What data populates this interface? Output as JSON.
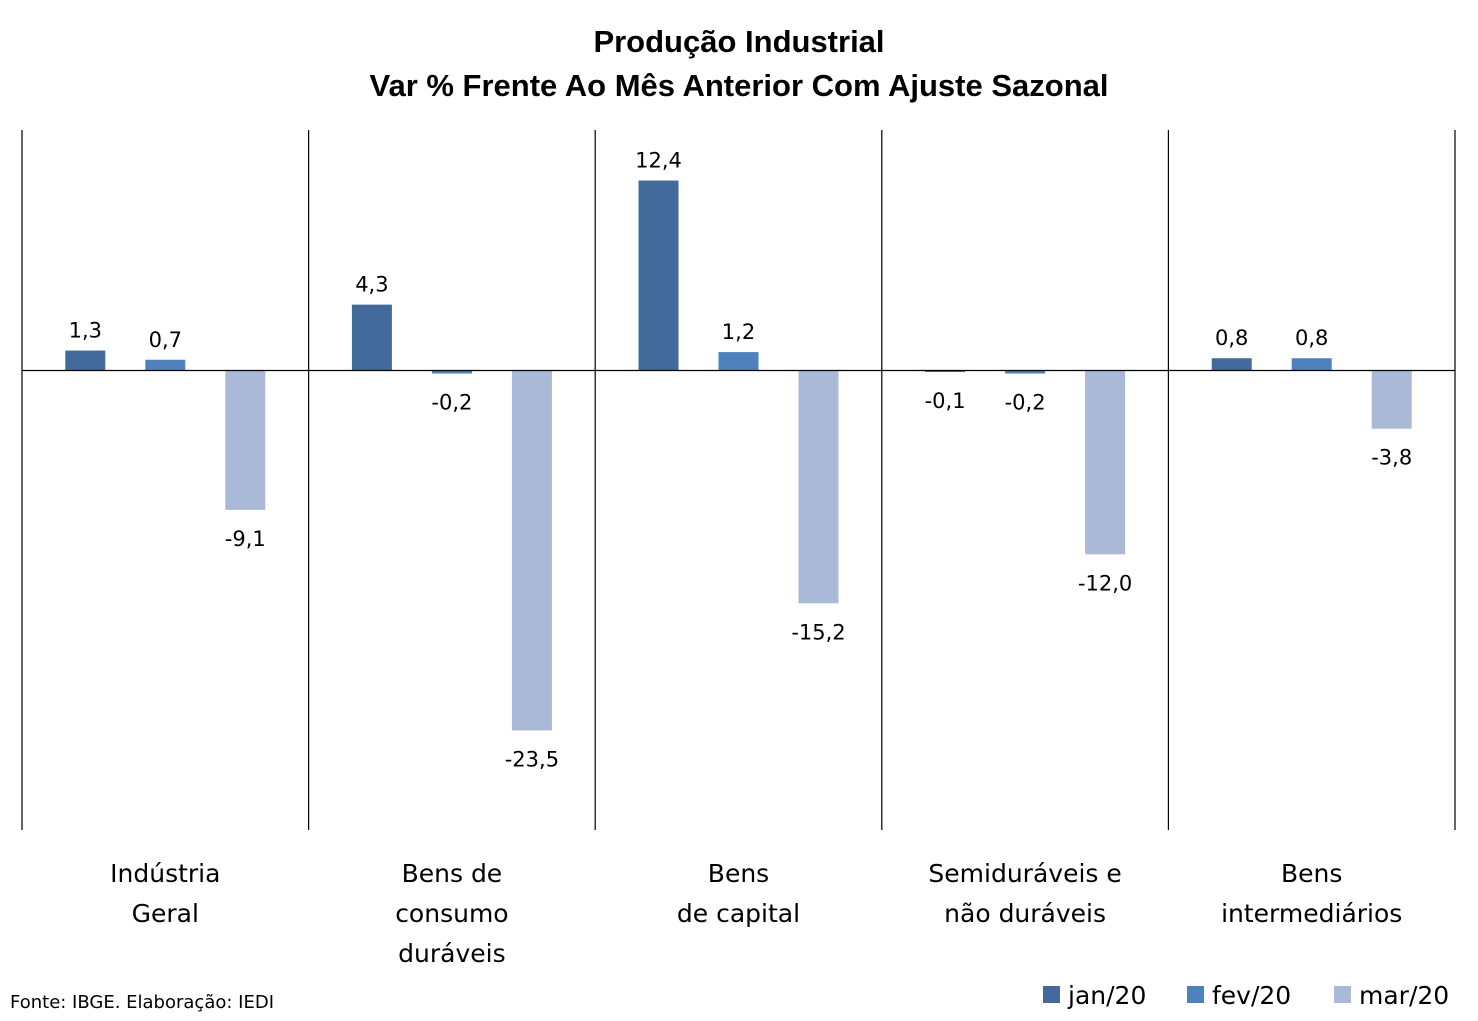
{
  "chart_data": {
    "type": "bar",
    "title": "Produção Industrial",
    "subtitle": "Var % Frente Ao Mês Anterior Com Ajuste Sazonal",
    "categories": [
      [
        "Indústria",
        "Geral"
      ],
      [
        "Bens de",
        "consumo",
        "duráveis"
      ],
      [
        "Bens",
        "de capital"
      ],
      [
        "Semiduráveis e",
        "não duráveis"
      ],
      [
        "Bens",
        "intermediários"
      ]
    ],
    "series": [
      {
        "name": "jan/20",
        "color": "#426A9A",
        "values": [
          1.3,
          4.3,
          12.4,
          -0.1,
          0.8
        ],
        "labels": [
          "1,3",
          "4,3",
          "12,4",
          "-0,1",
          "0,8"
        ]
      },
      {
        "name": "fev/20",
        "color": "#4F81BD",
        "values": [
          0.7,
          -0.2,
          1.2,
          -0.2,
          0.8
        ],
        "labels": [
          "0,7",
          "-0,2",
          "1,2",
          "-0,2",
          "0,8"
        ]
      },
      {
        "name": "mar/20",
        "color": "#AAB9D8",
        "values": [
          -9.1,
          -23.5,
          -15.2,
          -12.0,
          -3.8
        ],
        "labels": [
          "-9,1",
          "-23,5",
          "-15,2",
          "-12,0",
          "-3,8"
        ]
      }
    ],
    "ylim": [
      -30,
      15.7
    ],
    "legend": "bottom-right",
    "grid": false,
    "source": "Fonte: IBGE. Elaboração: IEDI"
  }
}
